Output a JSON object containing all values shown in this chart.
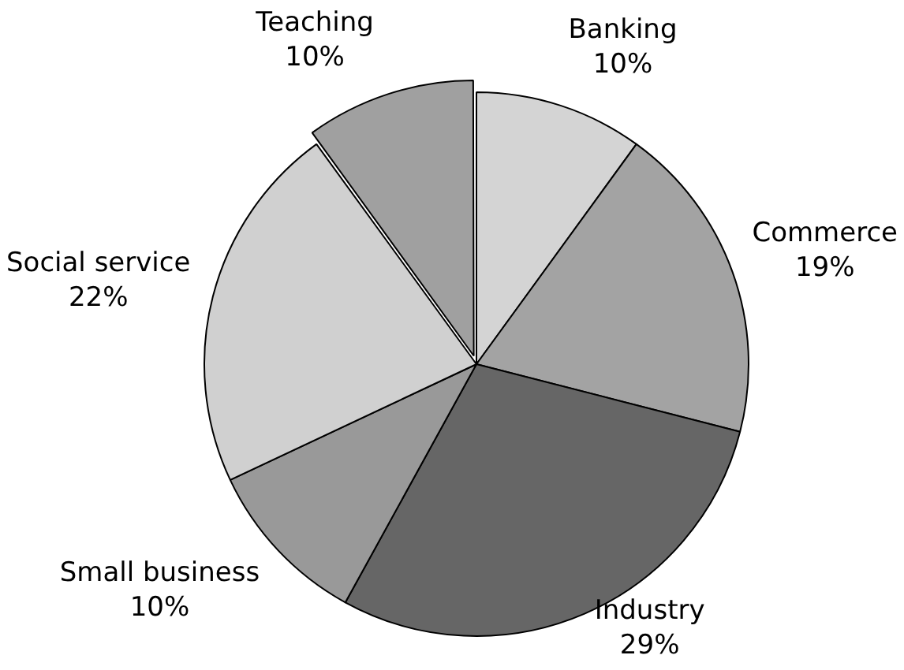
{
  "chart_data": {
    "type": "pie",
    "categories": [
      "Banking",
      "Commerce",
      "Industry",
      "Small business",
      "Social service",
      "Teaching"
    ],
    "values": [
      10,
      19,
      29,
      10,
      22,
      10
    ],
    "value_labels": [
      "10%",
      "19%",
      "29%",
      "10%",
      "22%",
      "10%"
    ],
    "colors": [
      "#d4d4d4",
      "#a3a3a3",
      "#666666",
      "#999999",
      "#d0d0d0",
      "#a0a0a0"
    ],
    "legend": false
  }
}
